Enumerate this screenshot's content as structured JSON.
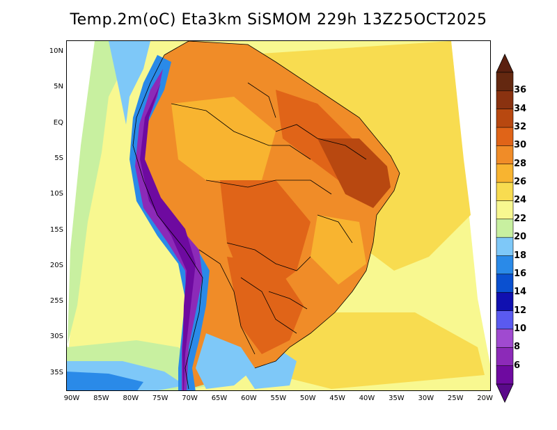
{
  "title": "Temp.2m(oC) Eta3km SiSMOM 229h 13Z25OCT2025",
  "lat_labels": [
    "10N",
    "5N",
    "EQ",
    "5S",
    "10S",
    "15S",
    "20S",
    "25S",
    "30S",
    "35S"
  ],
  "lon_labels": [
    "90W",
    "85W",
    "80W",
    "75W",
    "70W",
    "65W",
    "60W",
    "55W",
    "50W",
    "45W",
    "40W",
    "35W",
    "30W",
    "25W",
    "20W"
  ],
  "colorbar": {
    "labels": [
      "6",
      "8",
      "10",
      "12",
      "14",
      "16",
      "18",
      "20",
      "22",
      "24",
      "26",
      "28",
      "30",
      "32",
      "34",
      "36"
    ],
    "colors": [
      "#6e0aa0",
      "#8c2ab8",
      "#a04ad0",
      "#5a5af0",
      "#1010b0",
      "#0a50d0",
      "#2a8ae8",
      "#7ec8f8",
      "#c8f0a0",
      "#f8f890",
      "#f8dc50",
      "#f8b430",
      "#f08c28",
      "#e06418",
      "#b84810",
      "#8a3210",
      "#642810"
    ],
    "under_color": "#5a0a8a",
    "over_color": "#5a2010"
  }
}
